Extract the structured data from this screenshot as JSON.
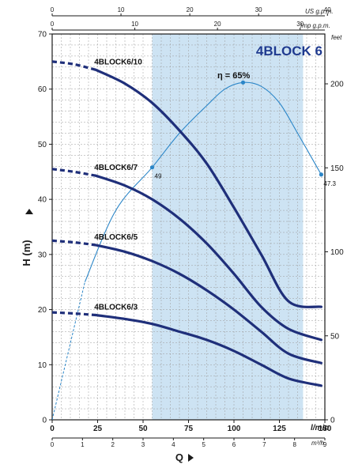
{
  "chart_data": {
    "type": "line",
    "title": "4BLOCK 6",
    "xlabel": "Q",
    "ylabel": "H (m)",
    "x_unit_primary": "l/min",
    "x_unit_secondary": "m³/h",
    "x_unit_top1": "US g.p.m.",
    "x_unit_top2": "Imp g.p.m.",
    "y_unit_right": "feet",
    "xlim": [
      0,
      150
    ],
    "ylim": [
      0,
      70
    ],
    "x_ticks": [
      0,
      25,
      50,
      75,
      100,
      125,
      150
    ],
    "x_ticks_m3h": [
      0,
      1,
      2,
      3,
      4,
      5,
      6,
      7,
      8,
      9
    ],
    "x_ticks_usgpm": [
      0,
      10,
      20,
      30,
      40
    ],
    "x_ticks_impgpm": [
      0,
      10,
      20,
      30
    ],
    "y_ticks": [
      0,
      10,
      20,
      30,
      40,
      50,
      60,
      70
    ],
    "y_ticks_feet": [
      0,
      50,
      100,
      150,
      200
    ],
    "grid": true,
    "operating_range": [
      55,
      138
    ],
    "series": [
      {
        "name": "4BLOCK6/10",
        "dashed_x": [
          0,
          12,
          24
        ],
        "dashed_y": [
          65,
          64.5,
          63.5
        ],
        "x": [
          24,
          40,
          55,
          70,
          85,
          100,
          115,
          130,
          148
        ],
        "y": [
          63.5,
          61,
          57.5,
          52.5,
          46.5,
          38.5,
          30,
          21.5,
          20.5
        ]
      },
      {
        "name": "4BLOCK6/7",
        "dashed_x": [
          0,
          12,
          24
        ],
        "dashed_y": [
          45.5,
          45,
          44.3
        ],
        "x": [
          24,
          40,
          55,
          70,
          85,
          100,
          115,
          130,
          148
        ],
        "y": [
          44.3,
          42.5,
          40,
          36.5,
          32,
          26.5,
          20.5,
          16.5,
          14.5
        ]
      },
      {
        "name": "4BLOCK6/5",
        "dashed_x": [
          0,
          12,
          24
        ],
        "dashed_y": [
          32.5,
          32.2,
          31.7
        ],
        "x": [
          24,
          40,
          55,
          70,
          85,
          100,
          115,
          130,
          148
        ],
        "y": [
          31.7,
          30.5,
          28.8,
          26.5,
          23.5,
          20,
          16,
          12,
          10.3
        ]
      },
      {
        "name": "4BLOCK6/3",
        "dashed_x": [
          0,
          12,
          24
        ],
        "dashed_y": [
          19.5,
          19.3,
          19
        ],
        "x": [
          24,
          40,
          55,
          70,
          85,
          100,
          115,
          130,
          148
        ],
        "y": [
          19,
          18.3,
          17.4,
          16,
          14.5,
          12.5,
          10,
          7.5,
          6.2
        ]
      }
    ],
    "efficiency": {
      "label": "η = 65%",
      "dashed_x": [
        0,
        18
      ],
      "dashed_y": [
        0,
        25
      ],
      "x": [
        18,
        35,
        55,
        70,
        85,
        95,
        105,
        115,
        125,
        135,
        148
      ],
      "y": [
        25,
        38,
        45.8,
        52,
        57,
        60,
        61.2,
        60.5,
        57.5,
        52,
        44.5
      ],
      "markers": [
        {
          "x": 55,
          "y": 45.8,
          "label": "49"
        },
        {
          "x": 105,
          "y": 61.2,
          "label": ""
        },
        {
          "x": 148,
          "y": 44.5,
          "label": "47.3"
        }
      ]
    }
  }
}
